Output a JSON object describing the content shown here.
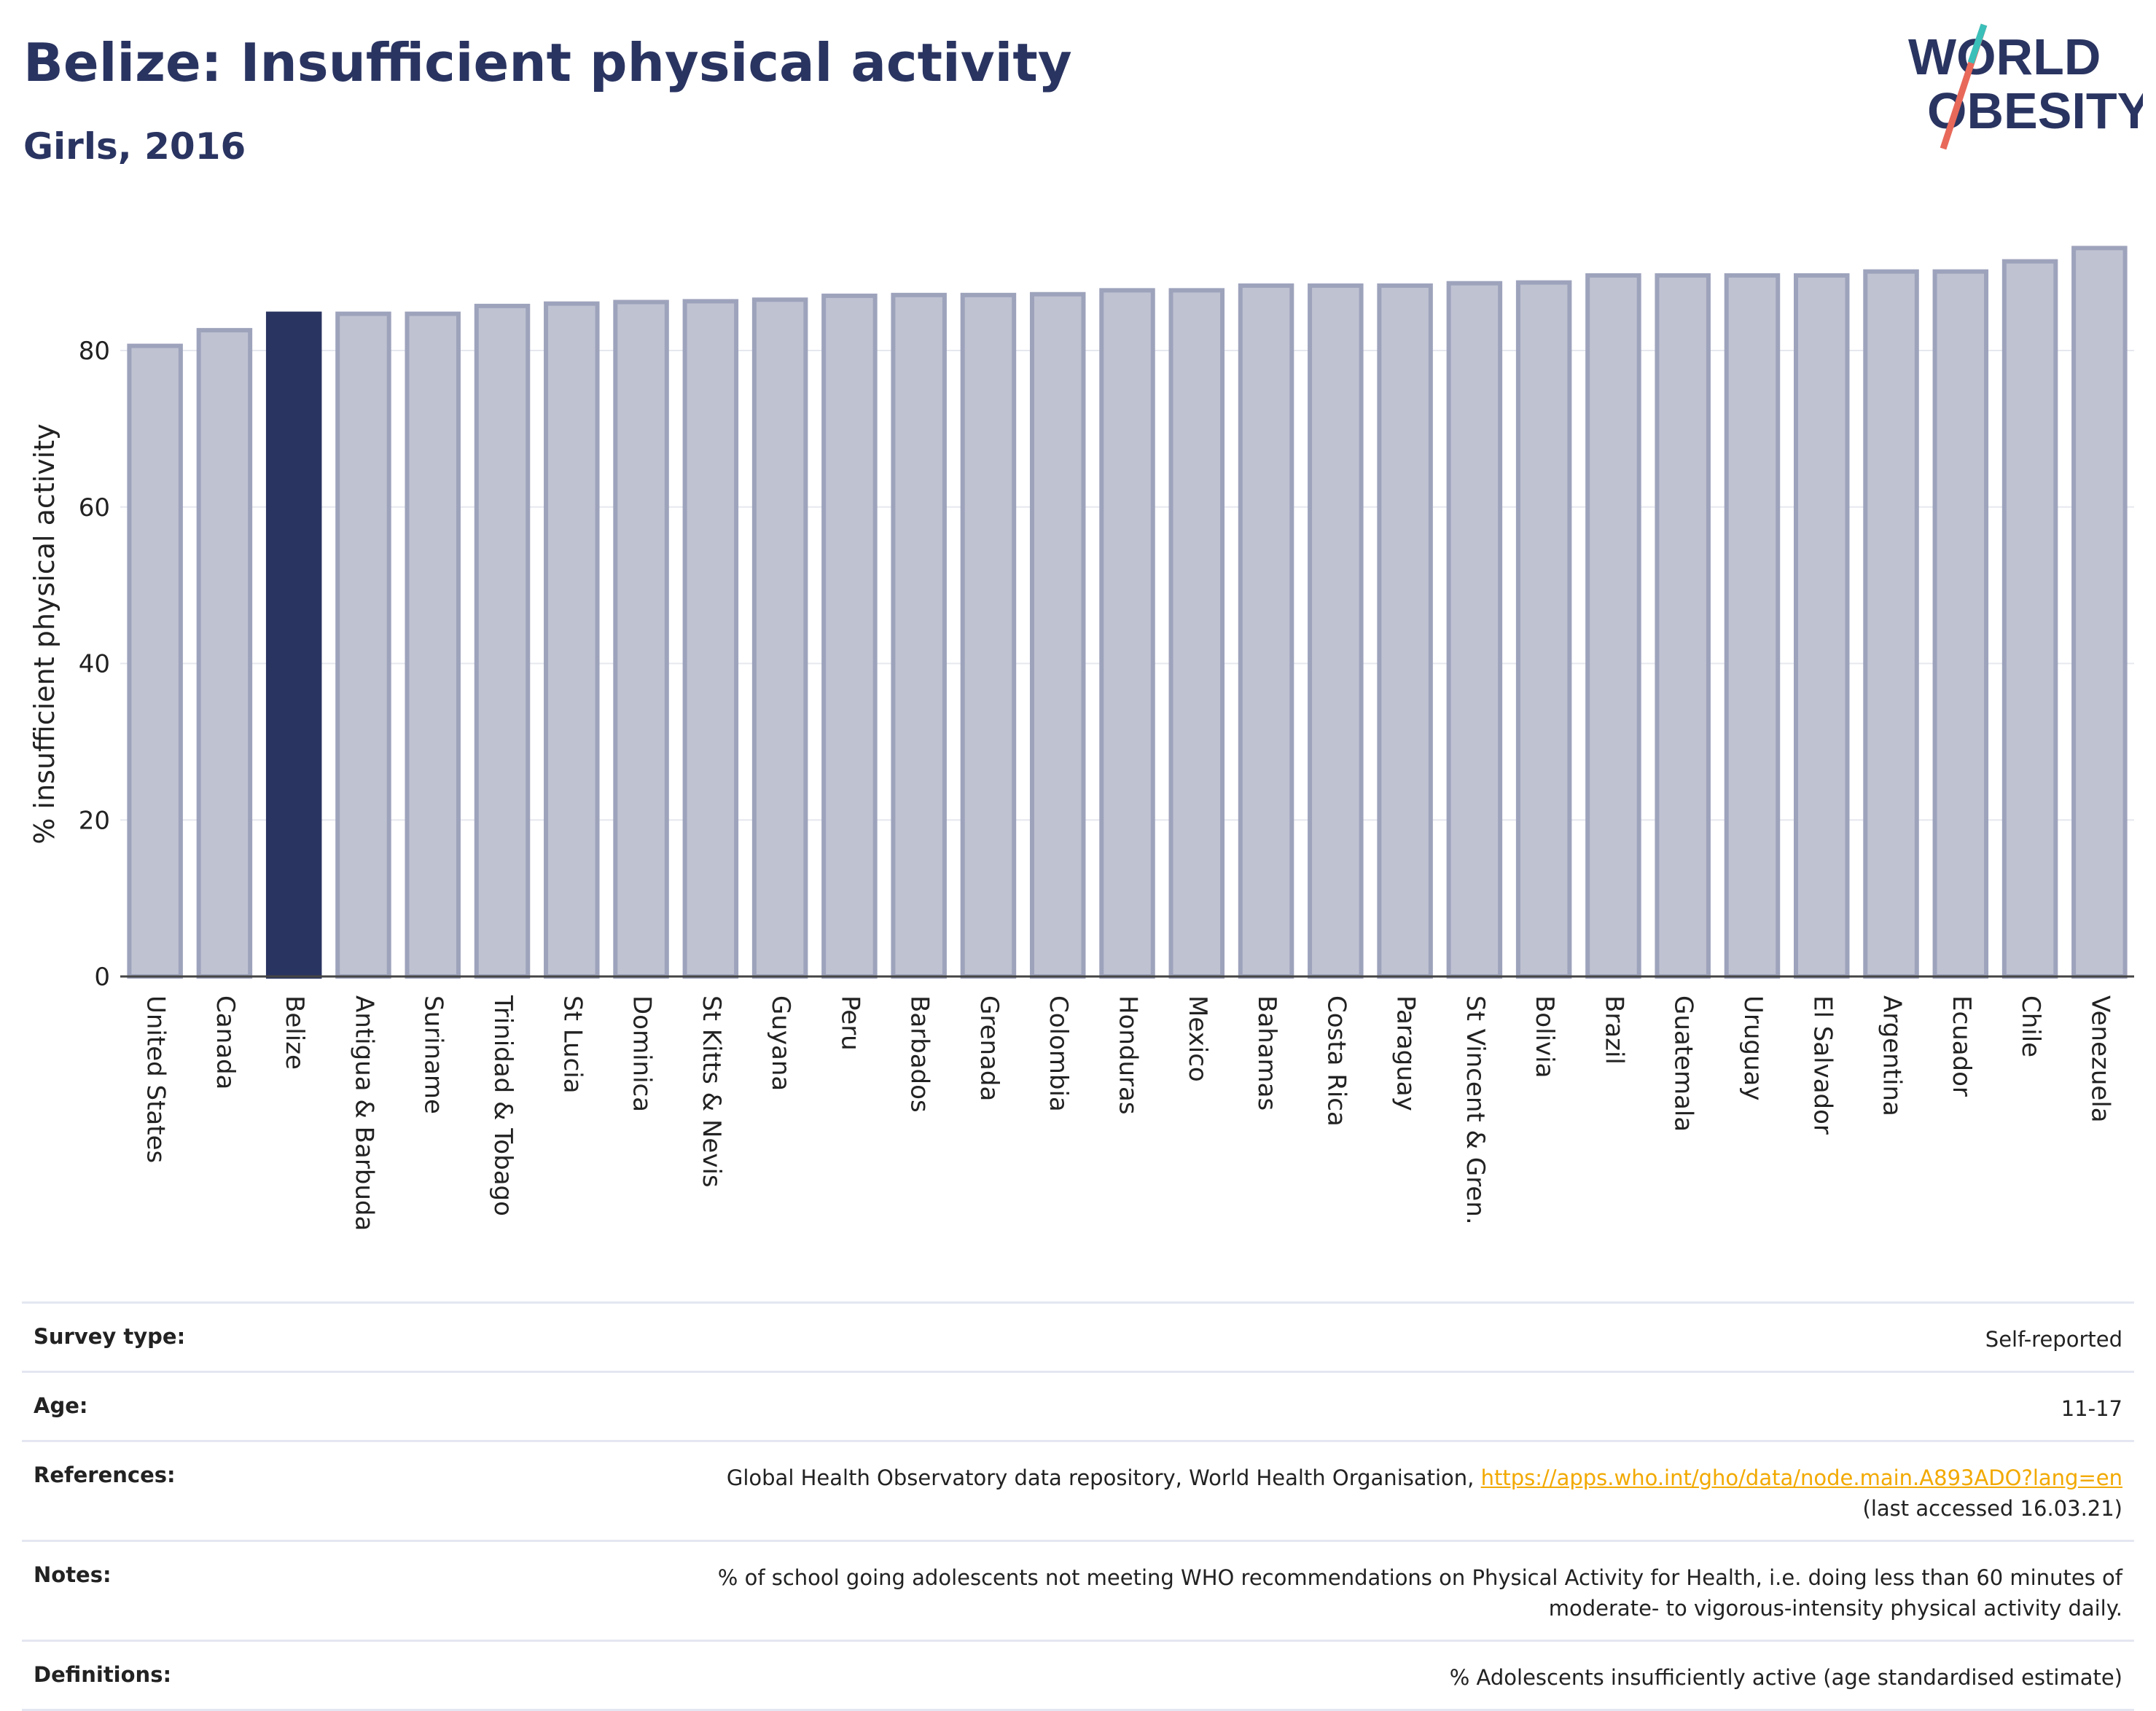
{
  "title": "Belize: Insufficient physical activity",
  "subtitle": "Girls, 2016",
  "logo": {
    "line1": "WORLD",
    "line2": "OBESITY"
  },
  "chart_data": {
    "type": "bar",
    "title": "Belize: Insufficient physical activity",
    "subtitle": "Girls, 2016",
    "xlabel": "",
    "ylabel": "% insufficient physical activity",
    "ylim": [
      0,
      95
    ],
    "yticks": [
      0,
      20,
      40,
      60,
      80
    ],
    "grid": true,
    "highlight": "Belize",
    "highlight_color": "#2a3461",
    "bar_color": "#bfc2d1",
    "bar_edge_color": "#9ea3bc",
    "categories": [
      "United States",
      "Canada",
      "Belize",
      "Antigua & Barbuda",
      "Suriname",
      "Trinidad & Tobago",
      "St Lucia",
      "Dominica",
      "St Kitts & Nevis",
      "Guyana",
      "Peru",
      "Barbados",
      "Grenada",
      "Colombia",
      "Honduras",
      "Mexico",
      "Bahamas",
      "Costa Rica",
      "Paraguay",
      "St Vincent & Gren.",
      "Bolivia",
      "Brazil",
      "Guatemala",
      "Uruguay",
      "El Salvador",
      "Argentina",
      "Ecuador",
      "Chile",
      "Venezuela"
    ],
    "values": [
      80.6,
      82.6,
      84.7,
      84.7,
      84.7,
      85.7,
      86.0,
      86.2,
      86.3,
      86.5,
      87.0,
      87.1,
      87.1,
      87.2,
      87.7,
      87.7,
      88.3,
      88.3,
      88.3,
      88.6,
      88.7,
      89.6,
      89.6,
      89.6,
      89.6,
      90.1,
      90.1,
      91.4,
      93.1
    ]
  },
  "info": {
    "survey_type": {
      "label": "Survey type:",
      "value": "Self-reported"
    },
    "age": {
      "label": "Age:",
      "value": "11-17"
    },
    "references": {
      "label": "References:",
      "text": "Global Health Observatory data repository, World Health Organisation, ",
      "link": "https://apps.who.int/gho/data/node.main.A893ADO?lang=en",
      "accessed": "(last accessed 16.03.21)"
    },
    "notes": {
      "label": "Notes:",
      "line1": "% of school going adolescents not meeting WHO recommendations on Physical Activity for Health, i.e. doing less than 60 minutes of",
      "line2": "moderate- to vigorous-intensity physical activity daily."
    },
    "definitions": {
      "label": "Definitions:",
      "value": "% Adolescents insufficiently active (age standardised estimate)"
    }
  }
}
